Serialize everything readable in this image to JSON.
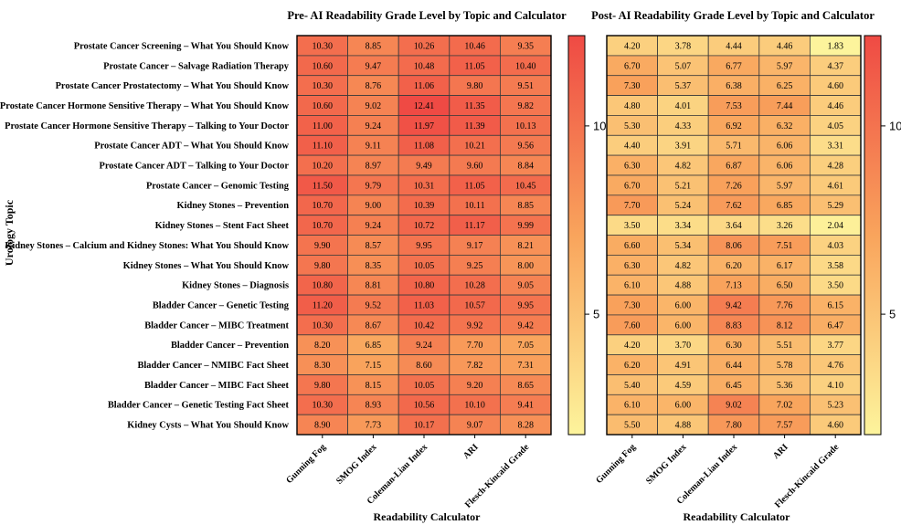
{
  "colors": {
    "low": "#fdf49c",
    "mid": "#f9a45c",
    "high": "#ef4a44",
    "grid": "#3a3a3a",
    "frame": "#000000"
  },
  "colorbar": {
    "min": 1.8,
    "max": 12.4,
    "ticks": [
      "5",
      "10"
    ],
    "tick_values": [
      5,
      10
    ]
  },
  "chart_data": [
    {
      "type": "heatmap",
      "title": "Pre- AI Readability Grade Level by Topic and Calculator",
      "xlabel": "Readability Calculator",
      "ylabel": "Urology Topic",
      "columns": [
        "Gunning Fog",
        "SMOG Index",
        "Coleman-Liau Index",
        "ARI",
        "Flesch-Kincaid Grade"
      ],
      "rows": [
        "Prostate Cancer Screening – What You Should Know",
        "Prostate Cancer – Salvage Radiation Therapy",
        "Prostate Cancer Prostatectomy – What You Should Know",
        "Prostate Cancer Hormone Sensitive Therapy – What You Should Know",
        "Prostate Cancer Hormone Sensitive Therapy – Talking to Your Doctor",
        "Prostate Cancer ADT – What You Should Know",
        "Prostate Cancer ADT – Talking to Your Doctor",
        "Prostate Cancer – Genomic Testing",
        "Kidney Stones – Prevention",
        "Kidney Stones – Stent Fact Sheet",
        "Kidney Stones – Calcium and Kidney Stones: What You Should Know",
        "Kidney Stones – What You Should Know",
        "Kidney Stones – Diagnosis",
        "Bladder Cancer – Genetic Testing",
        "Bladder Cancer – MIBC Treatment",
        "Bladder Cancer – Prevention",
        "Bladder Cancer – NMIBC Fact Sheet",
        "Bladder Cancer – MIBC Fact Sheet",
        "Bladder Cancer – Genetic Testing Fact Sheet",
        "Kidney Cysts – What You Should Know"
      ],
      "values": [
        [
          "10.30",
          "8.85",
          "10.26",
          "10.46",
          "9.35"
        ],
        [
          "10.60",
          "9.47",
          "10.48",
          "11.05",
          "10.40"
        ],
        [
          "10.30",
          "8.76",
          "11.06",
          "9.80",
          "9.51"
        ],
        [
          "10.60",
          "9.02",
          "12.41",
          "11.35",
          "9.82"
        ],
        [
          "11.00",
          "9.24",
          "11.97",
          "11.39",
          "10.13"
        ],
        [
          "11.10",
          "9.11",
          "11.08",
          "10.21",
          "9.56"
        ],
        [
          "10.20",
          "8.97",
          "9.49",
          "9.60",
          "8.84"
        ],
        [
          "11.50",
          "9.79",
          "10.31",
          "11.05",
          "10.45"
        ],
        [
          "10.70",
          "9.00",
          "10.39",
          "10.11",
          "8.85"
        ],
        [
          "10.70",
          "9.24",
          "10.72",
          "11.17",
          "9.99"
        ],
        [
          "9.90",
          "8.57",
          "9.95",
          "9.17",
          "8.21"
        ],
        [
          "9.80",
          "8.35",
          "10.05",
          "9.25",
          "8.00"
        ],
        [
          "10.80",
          "8.81",
          "10.80",
          "10.28",
          "9.05"
        ],
        [
          "11.20",
          "9.52",
          "11.03",
          "10.57",
          "9.95"
        ],
        [
          "10.30",
          "8.67",
          "10.42",
          "9.92",
          "9.42"
        ],
        [
          "8.20",
          "6.85",
          "9.24",
          "7.70",
          "7.05"
        ],
        [
          "8.30",
          "7.15",
          "8.60",
          "7.82",
          "7.31"
        ],
        [
          "9.80",
          "8.15",
          "10.05",
          "9.20",
          "8.65"
        ],
        [
          "10.30",
          "8.93",
          "10.56",
          "10.10",
          "9.41"
        ],
        [
          "8.90",
          "7.73",
          "10.17",
          "9.07",
          "8.28"
        ]
      ]
    },
    {
      "type": "heatmap",
      "title": "Post- AI Readability Grade Level by Topic and Calculator",
      "xlabel": "Readability Calculator",
      "columns": [
        "Gunning Fog",
        "SMOG Index",
        "Coleman-Liau Index",
        "ARI",
        "Flesch-Kincaid Grade"
      ],
      "values": [
        [
          "4.20",
          "3.78",
          "4.44",
          "4.46",
          "1.83"
        ],
        [
          "6.70",
          "5.07",
          "6.77",
          "5.97",
          "4.37"
        ],
        [
          "7.30",
          "5.37",
          "6.38",
          "6.25",
          "4.60"
        ],
        [
          "4.80",
          "4.01",
          "7.53",
          "7.44",
          "4.46"
        ],
        [
          "5.30",
          "4.33",
          "6.92",
          "6.32",
          "4.05"
        ],
        [
          "4.40",
          "3.91",
          "5.71",
          "6.06",
          "3.31"
        ],
        [
          "6.30",
          "4.82",
          "6.87",
          "6.06",
          "4.28"
        ],
        [
          "6.70",
          "5.21",
          "7.26",
          "5.97",
          "4.61"
        ],
        [
          "7.70",
          "5.24",
          "7.62",
          "6.85",
          "5.29"
        ],
        [
          "3.50",
          "3.34",
          "3.64",
          "3.26",
          "2.04"
        ],
        [
          "6.60",
          "5.34",
          "8.06",
          "7.51",
          "4.03"
        ],
        [
          "6.30",
          "4.82",
          "6.20",
          "6.17",
          "3.58"
        ],
        [
          "6.10",
          "4.88",
          "7.13",
          "6.50",
          "3.50"
        ],
        [
          "7.30",
          "6.00",
          "9.42",
          "7.76",
          "6.15"
        ],
        [
          "7.60",
          "6.00",
          "8.83",
          "8.12",
          "6.47"
        ],
        [
          "4.20",
          "3.70",
          "6.30",
          "5.51",
          "3.77"
        ],
        [
          "6.20",
          "4.91",
          "6.44",
          "5.78",
          "4.76"
        ],
        [
          "5.40",
          "4.59",
          "6.45",
          "5.36",
          "4.10"
        ],
        [
          "6.10",
          "6.00",
          "9.02",
          "7.02",
          "5.23"
        ],
        [
          "5.50",
          "4.88",
          "7.80",
          "7.57",
          "4.60"
        ]
      ]
    }
  ]
}
